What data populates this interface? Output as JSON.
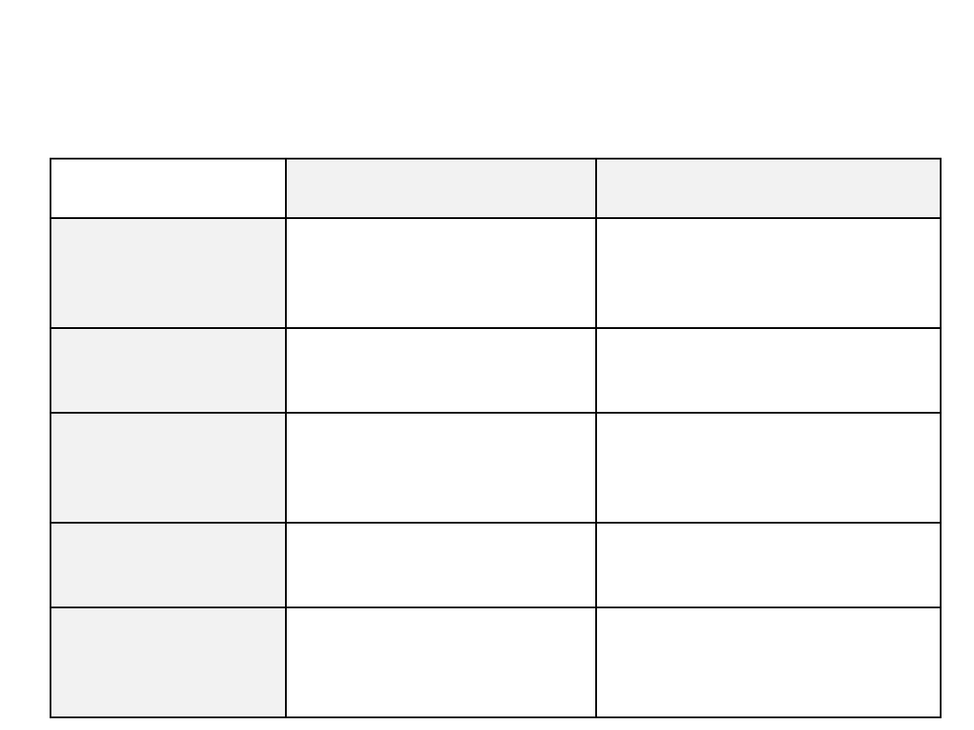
{
  "table": {
    "header_fill": "#f2f2f2",
    "border_color": "#000000",
    "rows": [
      [
        "",
        "",
        ""
      ],
      [
        "",
        "",
        ""
      ],
      [
        "",
        "",
        ""
      ],
      [
        "",
        "",
        ""
      ],
      [
        "",
        "",
        ""
      ],
      [
        "",
        "",
        ""
      ]
    ]
  }
}
